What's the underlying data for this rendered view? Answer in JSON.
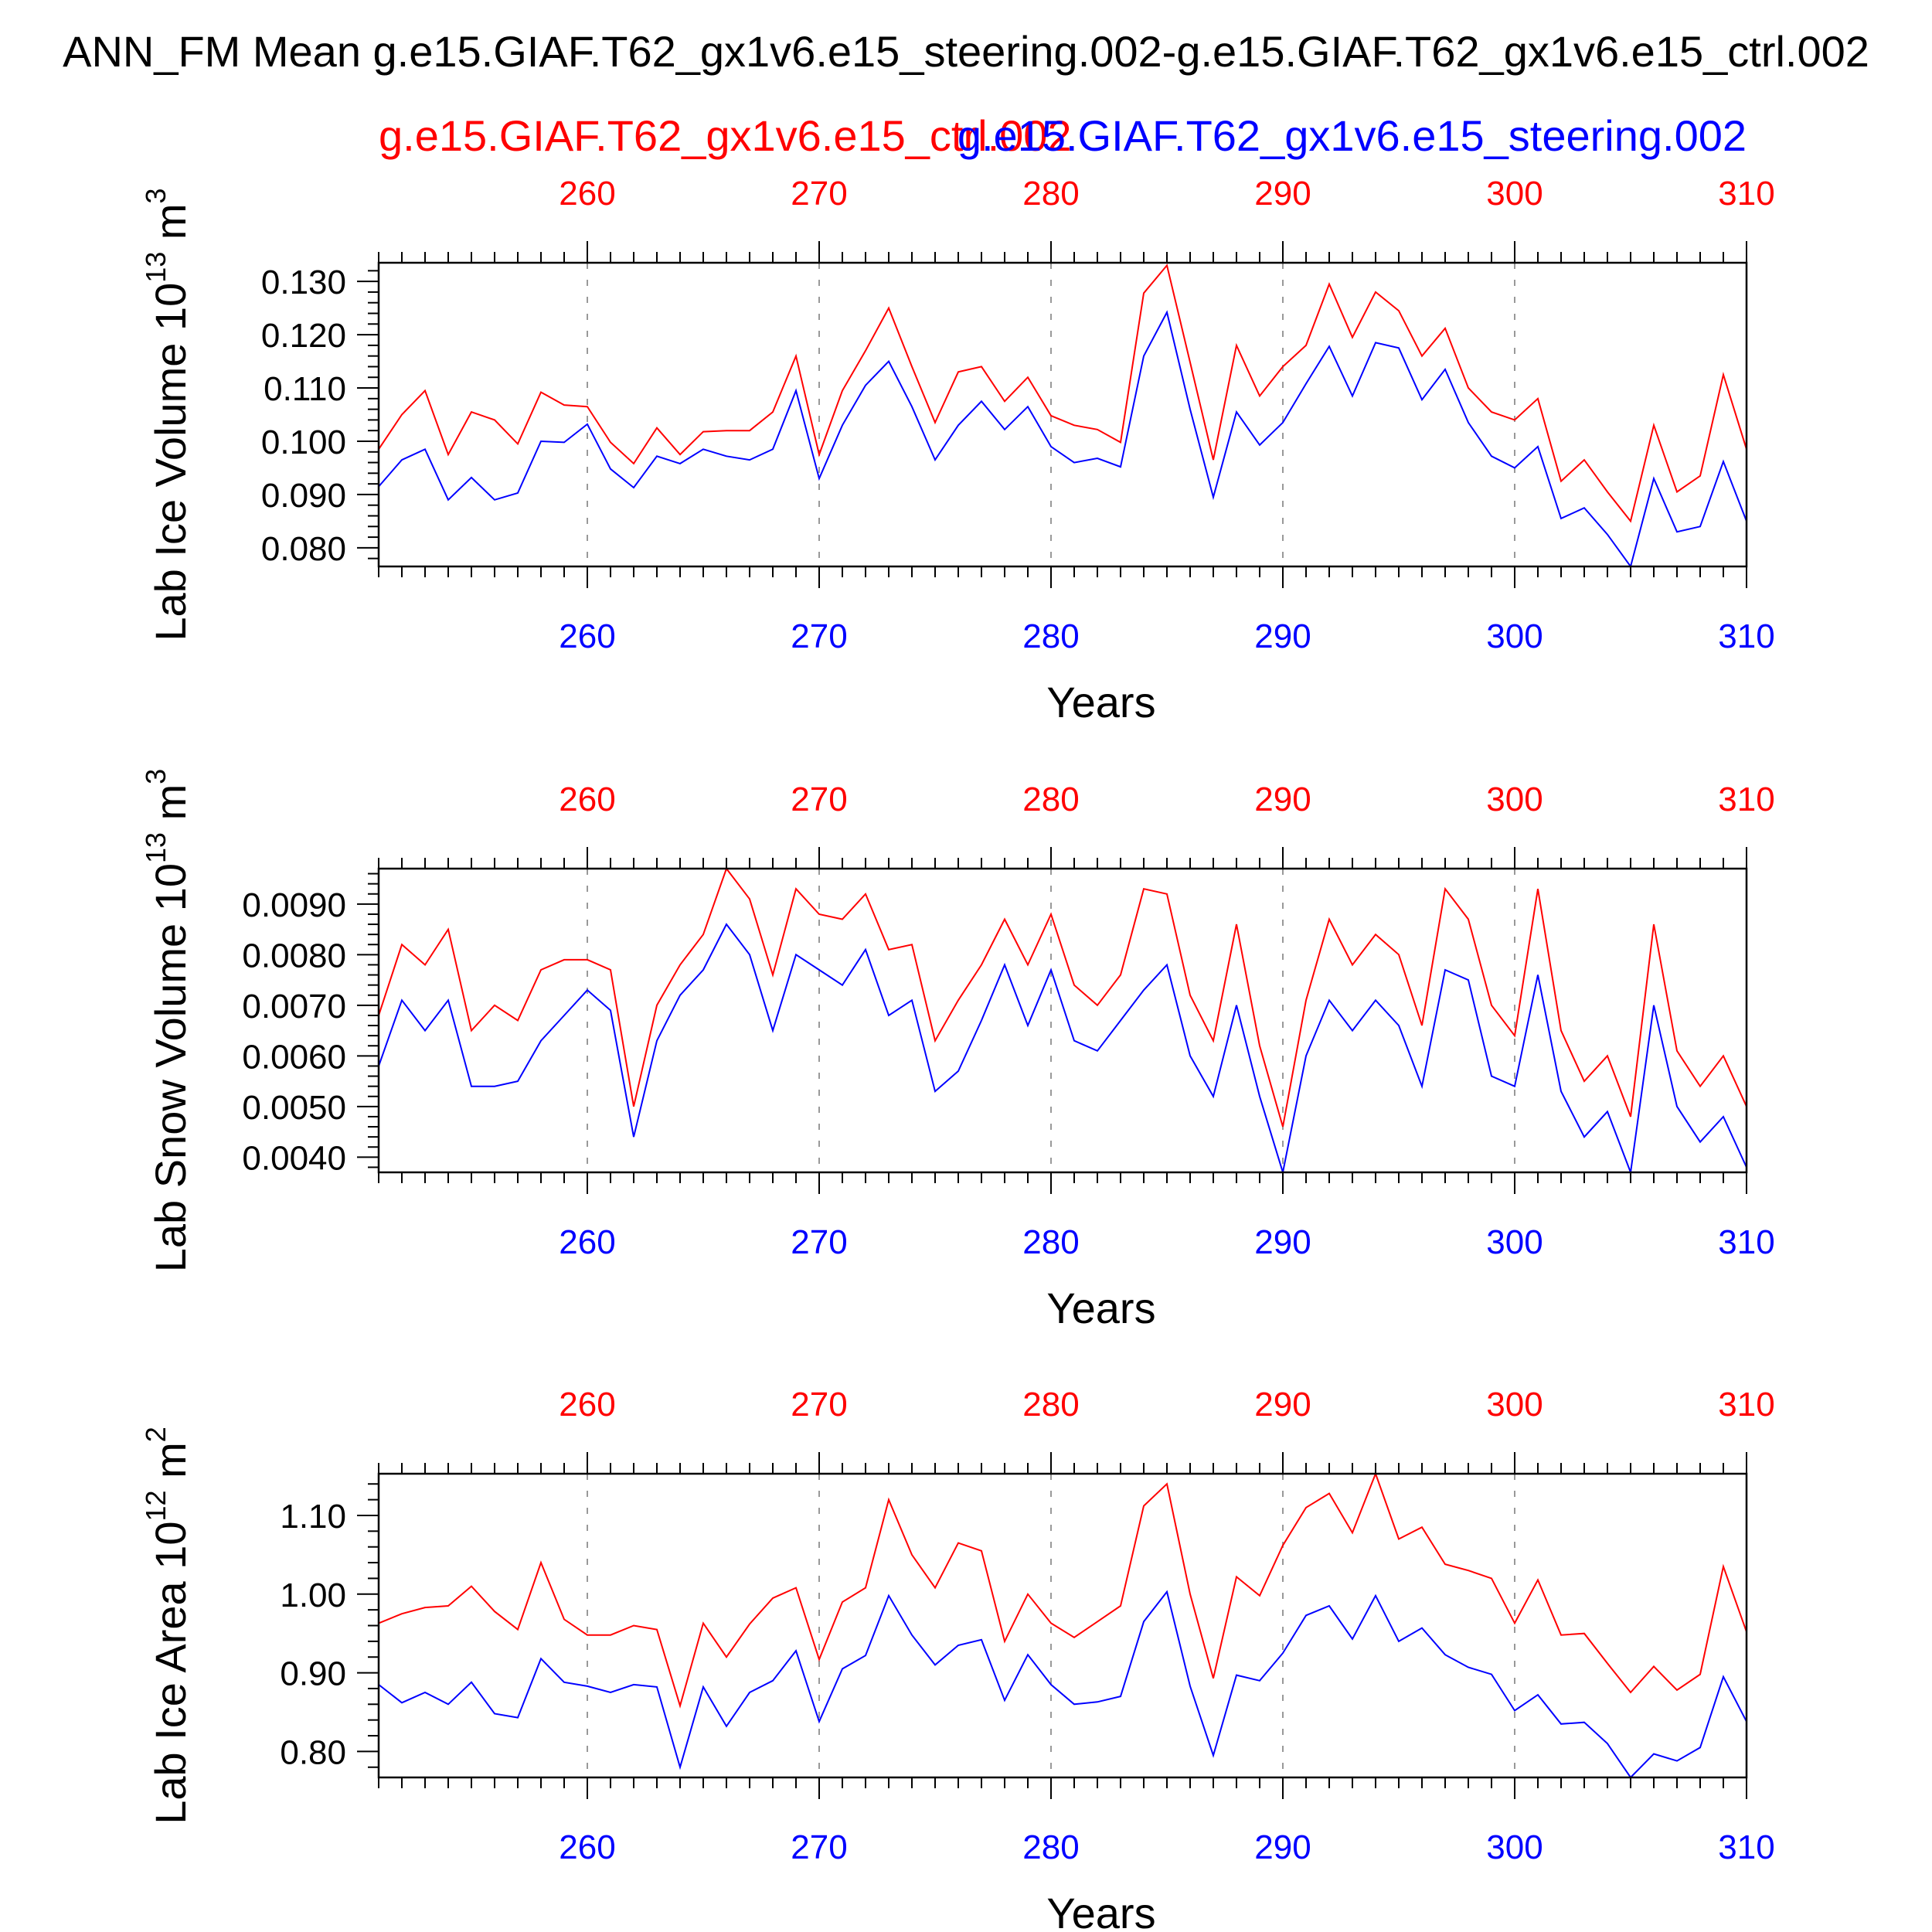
{
  "title": "ANN_FM Mean g.e15.GIAF.T62_gx1v6.e15_steering.002-g.e15.GIAF.T62_gx1v6.e15_ctrl.002",
  "case_ctrl": "g.e15.GIAF.T62_gx1v6.e15_ctrl.002",
  "case_test": "g.e15.GIAF.T62_gx1v6.e15_steering.002",
  "colors": {
    "ctrl": "#ff0000",
    "test": "#0000ff",
    "axis": "#000000",
    "grid": "#999999"
  },
  "chart_data": [
    {
      "type": "line",
      "ylabel": "Lab Ice Volume 10",
      "ylabel_exp": "13",
      "ylabel_unit": " m",
      "ylabel_unit_exp": "3",
      "xlabel": "Years",
      "xlim": [
        251,
        310
      ],
      "ylim": [
        0.0765,
        0.1335
      ],
      "yticks": [
        "0.080",
        "0.090",
        "0.100",
        "0.110",
        "0.120",
        "0.130"
      ],
      "ytick_values": [
        0.08,
        0.09,
        0.1,
        0.11,
        0.12,
        0.13
      ],
      "xticks": [
        "260",
        "270",
        "280",
        "290",
        "300",
        "310"
      ],
      "xtick_values": [
        260,
        270,
        280,
        290,
        300,
        310
      ],
      "x": [
        251,
        252,
        253,
        254,
        255,
        256,
        257,
        258,
        259,
        260,
        261,
        262,
        263,
        264,
        265,
        266,
        267,
        268,
        269,
        270,
        271,
        272,
        273,
        274,
        275,
        276,
        277,
        278,
        279,
        280,
        281,
        282,
        283,
        284,
        285,
        286,
        287,
        288,
        289,
        290,
        291,
        292,
        293,
        294,
        295,
        296,
        297,
        298,
        299,
        300,
        301,
        302,
        303,
        304,
        305,
        306,
        307,
        308,
        309,
        310
      ],
      "series": [
        {
          "name": "g.e15.GIAF.T62_gx1v6.e15_ctrl.002",
          "color": "#ff0000",
          "values": [
            0.0985,
            0.105,
            0.1095,
            0.0975,
            0.1055,
            0.104,
            0.0995,
            0.1092,
            0.1068,
            0.1065,
            0.0998,
            0.0958,
            0.1025,
            0.0975,
            0.1018,
            0.102,
            0.102,
            0.1055,
            0.116,
            0.0975,
            0.1095,
            0.117,
            0.125,
            0.114,
            0.1035,
            0.113,
            0.114,
            0.1075,
            0.112,
            0.1048,
            0.103,
            0.1022,
            0.0998,
            0.1278,
            0.133,
            0.1148,
            0.0965,
            0.118,
            0.1085,
            0.114,
            0.118,
            0.1295,
            0.1195,
            0.128,
            0.1245,
            0.116,
            0.1212,
            0.11,
            0.1055,
            0.104,
            0.108,
            0.0925,
            0.0965,
            0.0905,
            0.085,
            0.103,
            0.0905,
            0.0935,
            0.1125,
            0.0985
          ]
        },
        {
          "name": "g.e15.GIAF.T62_gx1v6.e15_steering.002",
          "color": "#0000ff",
          "values": [
            0.0915,
            0.0965,
            0.0985,
            0.089,
            0.0932,
            0.089,
            0.0903,
            0.1,
            0.0998,
            0.1032,
            0.0948,
            0.0913,
            0.0972,
            0.0958,
            0.0985,
            0.0972,
            0.0965,
            0.0985,
            0.1095,
            0.093,
            0.103,
            0.1105,
            0.115,
            0.1065,
            0.0965,
            0.103,
            0.1075,
            0.1022,
            0.1065,
            0.099,
            0.096,
            0.0968,
            0.0952,
            0.116,
            0.1242,
            0.106,
            0.0895,
            0.1055,
            0.0993,
            0.1035,
            0.1108,
            0.1178,
            0.1085,
            0.1185,
            0.1175,
            0.1078,
            0.1135,
            0.1035,
            0.0972,
            0.095,
            0.099,
            0.0855,
            0.0875,
            0.0825,
            0.0765,
            0.093,
            0.083,
            0.084,
            0.0962,
            0.085
          ]
        }
      ]
    },
    {
      "type": "line",
      "ylabel": "Lab Snow Volume 10",
      "ylabel_exp": "13",
      "ylabel_unit": " m",
      "ylabel_unit_exp": "3",
      "xlabel": "Years",
      "xlim": [
        251,
        310
      ],
      "ylim": [
        0.0037,
        0.0097
      ],
      "yticks": [
        "0.0040",
        "0.0050",
        "0.0060",
        "0.0070",
        "0.0080",
        "0.0090"
      ],
      "ytick_values": [
        0.004,
        0.005,
        0.006,
        0.007,
        0.008,
        0.009
      ],
      "xticks": [
        "260",
        "270",
        "280",
        "290",
        "300",
        "310"
      ],
      "xtick_values": [
        260,
        270,
        280,
        290,
        300,
        310
      ],
      "x": [
        251,
        252,
        253,
        254,
        255,
        256,
        257,
        258,
        259,
        260,
        261,
        262,
        263,
        264,
        265,
        266,
        267,
        268,
        269,
        270,
        271,
        272,
        273,
        274,
        275,
        276,
        277,
        278,
        279,
        280,
        281,
        282,
        283,
        284,
        285,
        286,
        287,
        288,
        289,
        290,
        291,
        292,
        293,
        294,
        295,
        296,
        297,
        298,
        299,
        300,
        301,
        302,
        303,
        304,
        305,
        306,
        307,
        308,
        309,
        310
      ],
      "series": [
        {
          "name": "g.e15.GIAF.T62_gx1v6.e15_ctrl.002",
          "color": "#ff0000",
          "values": [
            0.0068,
            0.0082,
            0.0078,
            0.0085,
            0.0065,
            0.007,
            0.0067,
            0.0077,
            0.0079,
            0.0079,
            0.0077,
            0.005,
            0.007,
            0.0078,
            0.0084,
            0.0097,
            0.0091,
            0.0076,
            0.0093,
            0.0088,
            0.0087,
            0.0092,
            0.0081,
            0.0082,
            0.0063,
            0.0071,
            0.0078,
            0.0087,
            0.0078,
            0.0088,
            0.0074,
            0.007,
            0.0076,
            0.0093,
            0.0092,
            0.0072,
            0.0063,
            0.0086,
            0.0062,
            0.0046,
            0.0071,
            0.0087,
            0.0078,
            0.0084,
            0.008,
            0.0066,
            0.0093,
            0.0087,
            0.007,
            0.0064,
            0.0093,
            0.0065,
            0.0055,
            0.006,
            0.0048,
            0.0086,
            0.0061,
            0.0054,
            0.006,
            0.005
          ]
        },
        {
          "name": "g.e15.GIAF.T62_gx1v6.e15_steering.002",
          "color": "#0000ff",
          "values": [
            0.0058,
            0.0071,
            0.0065,
            0.0071,
            0.0054,
            0.0054,
            0.0055,
            0.0063,
            0.0068,
            0.0073,
            0.0069,
            0.0044,
            0.0063,
            0.0072,
            0.0077,
            0.0086,
            0.008,
            0.0065,
            0.008,
            0.0077,
            0.0074,
            0.0081,
            0.0068,
            0.0071,
            0.0053,
            0.0057,
            0.0067,
            0.0078,
            0.0066,
            0.0077,
            0.0063,
            0.0061,
            0.0067,
            0.0073,
            0.0078,
            0.006,
            0.0052,
            0.007,
            0.0052,
            0.0037,
            0.006,
            0.0071,
            0.0065,
            0.0071,
            0.0066,
            0.0054,
            0.0077,
            0.0075,
            0.0056,
            0.0054,
            0.0076,
            0.0053,
            0.0044,
            0.0049,
            0.0037,
            0.007,
            0.005,
            0.0043,
            0.0048,
            0.0038
          ]
        }
      ]
    },
    {
      "type": "line",
      "ylabel": "Lab Ice Area 10",
      "ylabel_exp": "12",
      "ylabel_unit": " m",
      "ylabel_unit_exp": "2",
      "xlabel": "Years",
      "xlim": [
        251,
        310
      ],
      "ylim": [
        0.767,
        1.153
      ],
      "yticks": [
        "0.80",
        "0.90",
        "1.00",
        "1.10"
      ],
      "ytick_values": [
        0.8,
        0.9,
        1.0,
        1.1
      ],
      "xticks": [
        "260",
        "270",
        "280",
        "290",
        "300",
        "310"
      ],
      "xtick_values": [
        260,
        270,
        280,
        290,
        300,
        310
      ],
      "x": [
        251,
        252,
        253,
        254,
        255,
        256,
        257,
        258,
        259,
        260,
        261,
        262,
        263,
        264,
        265,
        266,
        267,
        268,
        269,
        270,
        271,
        272,
        273,
        274,
        275,
        276,
        277,
        278,
        279,
        280,
        281,
        282,
        283,
        284,
        285,
        286,
        287,
        288,
        289,
        290,
        291,
        292,
        293,
        294,
        295,
        296,
        297,
        298,
        299,
        300,
        301,
        302,
        303,
        304,
        305,
        306,
        307,
        308,
        309,
        310
      ],
      "series": [
        {
          "name": "g.e15.GIAF.T62_gx1v6.e15_ctrl.002",
          "color": "#ff0000",
          "values": [
            0.963,
            0.975,
            0.983,
            0.985,
            1.01,
            0.978,
            0.955,
            1.04,
            0.968,
            0.948,
            0.948,
            0.96,
            0.955,
            0.858,
            0.963,
            0.92,
            0.962,
            0.995,
            1.008,
            0.917,
            0.99,
            1.008,
            1.12,
            1.05,
            1.008,
            1.065,
            1.055,
            0.94,
            1.0,
            0.963,
            0.945,
            0.965,
            0.985,
            1.112,
            1.14,
            1.0,
            0.893,
            1.022,
            0.998,
            1.062,
            1.11,
            1.128,
            1.078,
            1.153,
            1.07,
            1.085,
            1.038,
            1.03,
            1.02,
            0.963,
            1.018,
            0.948,
            0.95,
            0.912,
            0.875,
            0.908,
            0.878,
            0.898,
            1.035,
            0.952
          ]
        },
        {
          "name": "g.e15.GIAF.T62_gx1v6.e15_steering.002",
          "color": "#0000ff",
          "values": [
            0.885,
            0.862,
            0.875,
            0.86,
            0.888,
            0.848,
            0.843,
            0.918,
            0.888,
            0.883,
            0.875,
            0.885,
            0.882,
            0.78,
            0.882,
            0.832,
            0.875,
            0.89,
            0.928,
            0.838,
            0.905,
            0.922,
            0.998,
            0.948,
            0.91,
            0.935,
            0.942,
            0.865,
            0.923,
            0.885,
            0.86,
            0.863,
            0.87,
            0.965,
            1.003,
            0.883,
            0.795,
            0.897,
            0.89,
            0.925,
            0.973,
            0.985,
            0.943,
            0.998,
            0.94,
            0.957,
            0.923,
            0.907,
            0.898,
            0.852,
            0.872,
            0.835,
            0.837,
            0.81,
            0.767,
            0.797,
            0.788,
            0.805,
            0.895,
            0.838
          ]
        }
      ]
    }
  ]
}
